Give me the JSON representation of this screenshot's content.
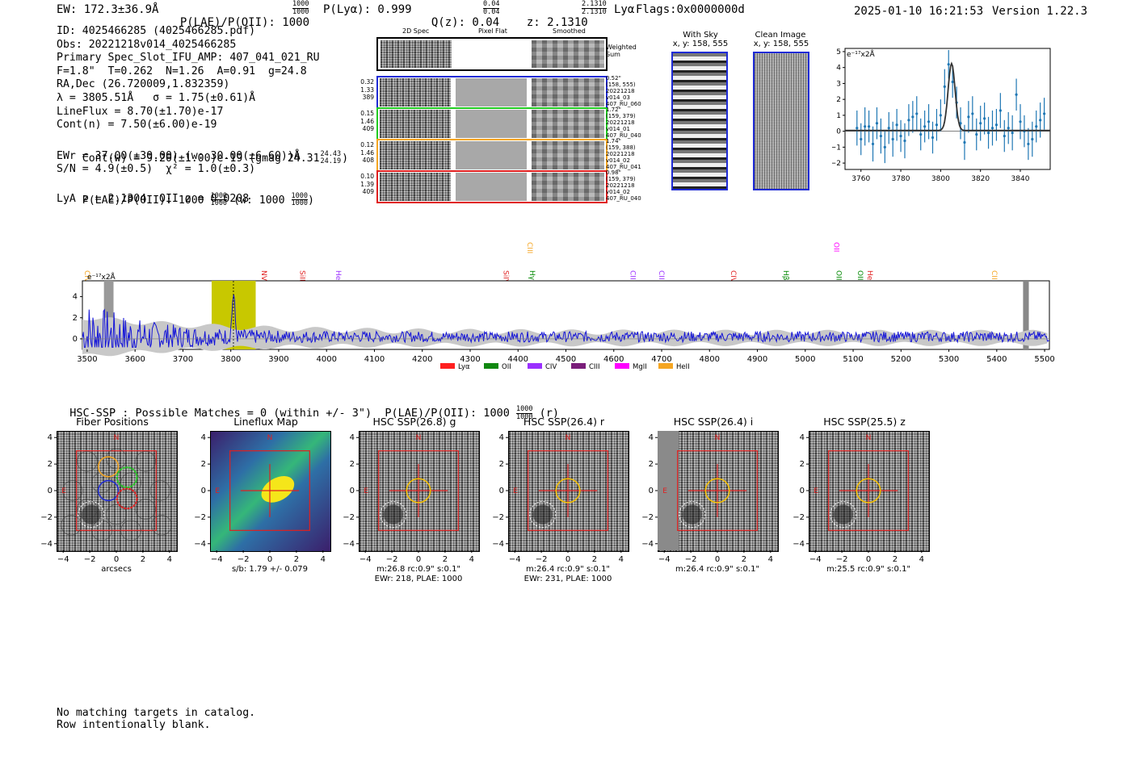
{
  "header": {
    "ew": "EW: 172.3±36.9Å",
    "plae_label": "P(LAE)/P(OII): 1000",
    "plae_sup": "1000",
    "plae_sub": "1000",
    "plya": "P(Lyα): 0.999",
    "qz_label": "Q(z): 0.04",
    "qz_sup": "0.04",
    "qz_sub": "0.04",
    "z_label": "z: 2.1310",
    "z_sup": "2.1310",
    "z_sub": "2.1310",
    "line": "Lyα",
    "flags": "Flags:0x0000000d",
    "datetime": "2025-01-10 16:21:53",
    "version": "Version 1.22.3"
  },
  "info": {
    "lines": [
      "ID: 4025466285 (4025466285.pdf)",
      "Obs: 20221218v014_4025466285",
      "Primary Spec_Slot_IFU_AMP: 407_041_021_RU",
      "F=1.8\"  T=0.262  N=1.26  A=0.91  g=24.8",
      "RA,Dec (26.720009,1.832359)",
      "λ = 3805.51Å   σ = 1.75(±0.61)Å",
      "LineFlux = 8.70(±1.70)e-17",
      "Cont(n) = 7.50(±6.00)e-19"
    ],
    "contw": "Cont(w) = 9.20(±1.00)e-19 (gmag 24.31",
    "contw_sup": "24.43",
    "contw_sub": "24.19",
    "contw_end": ")",
    "ewr": "EWr = 37.00(±30.00) (w: 30.00(±6.60))Å",
    "sn": "S/N = 4.9(±0.5)  χ² = 1.0(±0.3)",
    "plae": "P(LAE)/P(OII): 1000",
    "plae_sup": "1000",
    "plae_sub": "1000",
    "plae_w": "(w: 1000",
    "plae_w_sup": "1000",
    "plae_w_sub": "1000",
    "plae_end": ")",
    "lya_z": "LyA z = 2.1304  OII z = 0.0208"
  },
  "spec2d": {
    "col_titles": [
      "2D Spec",
      "Pixel Flat",
      "Smoothed"
    ],
    "weighted_sum": "Weighted\nSum",
    "rows": [
      {
        "left": [
          "0.32",
          "1.33",
          "389"
        ],
        "right": "0.52\"\n(158, 555)\n20221218\nv014_03\n407_RU_060",
        "color": "#1f2bd6"
      },
      {
        "left": [
          "0.15",
          "1.46",
          "409"
        ],
        "right": "1.72\"\n(159, 379)\n20221218\nv014_01\n407_RU_040",
        "color": "#22cc22"
      },
      {
        "left": [
          "0.12",
          "1.46",
          "408"
        ],
        "right": "1.74\"\n(159, 388)\n20221218\nv014_02\n407_RU_041",
        "color": "#f5a623"
      },
      {
        "left": [
          "0.10",
          "1.39",
          "409"
        ],
        "right": "0.98\"\n(159, 379)\n20221218\nv014_02\n407_RU_040",
        "color": "#e02020"
      }
    ]
  },
  "cutouts_top": {
    "with_sky_title": "With Sky",
    "with_sky_coords": "x, y: 158, 555",
    "clean_title": "Clean Image",
    "clean_coords": "x, y: 158, 555"
  },
  "zoom_chart": {
    "ylabel": "e⁻¹⁷x2Å",
    "xticks": [
      "3760",
      "3780",
      "3800",
      "3820",
      "3840"
    ],
    "yticks": [
      "5",
      "4",
      "3",
      "2",
      "1",
      "0",
      "−1",
      "−2"
    ]
  },
  "chart_data": [
    {
      "type": "scatter",
      "title": "",
      "xlabel": "",
      "ylabel": "e⁻¹⁷x2Å",
      "xlim": [
        3752,
        3855
      ],
      "ylim": [
        -2.4,
        5.2
      ],
      "x": [
        3758,
        3760,
        3762,
        3764,
        3766,
        3768,
        3770,
        3772,
        3774,
        3776,
        3778,
        3780,
        3782,
        3784,
        3786,
        3788,
        3790,
        3792,
        3794,
        3796,
        3798,
        3800,
        3802,
        3804,
        3806,
        3808,
        3810,
        3812,
        3814,
        3816,
        3818,
        3820,
        3822,
        3824,
        3826,
        3828,
        3830,
        3832,
        3834,
        3836,
        3838,
        3840,
        3842,
        3844,
        3846,
        3848,
        3850,
        3852
      ],
      "y": [
        0.2,
        -0.5,
        0.3,
        0.3,
        -0.8,
        0.5,
        -0.3,
        -1.0,
        0.2,
        -0.5,
        0.4,
        -0.3,
        -0.6,
        0.7,
        0.9,
        1.1,
        -0.2,
        0.3,
        0.6,
        -0.4,
        0.4,
        1.0,
        2.8,
        4.2,
        3.1,
        1.8,
        0.5,
        -0.7,
        0.9,
        1.1,
        -0.2,
        0.5,
        0.8,
        -0.1,
        0.2,
        0.4,
        1.3,
        -0.3,
        0.2,
        -0.1,
        2.3,
        0.6,
        0.0,
        -0.8,
        -0.5,
        0.3,
        0.7,
        1.1
      ],
      "yerr": [
        1.1,
        1.0,
        1.2,
        1.0,
        1.1,
        1.0,
        1.1,
        1.0,
        1.0,
        1.1,
        1.0,
        1.0,
        1.1,
        1.0,
        1.0,
        1.1,
        1.0,
        1.0,
        1.1,
        1.0,
        1.0,
        1.0,
        1.1,
        0.9,
        1.0,
        1.0,
        1.0,
        1.1,
        1.0,
        1.1,
        1.0,
        1.1,
        1.0,
        1.0,
        1.1,
        1.0,
        1.1,
        1.0,
        1.0,
        1.1,
        1.0,
        1.1,
        1.0,
        1.0,
        1.1,
        1.0,
        1.1,
        1.0
      ],
      "model": "gaussian peak ~4.2 at 3805.5, sigma 1.75"
    },
    {
      "type": "line",
      "title": "",
      "xlabel": "",
      "ylabel": "e⁻¹⁷x2Å",
      "xlim": [
        3490,
        5510
      ],
      "ylim": [
        -1,
        5.5
      ],
      "xticks": [
        3500,
        3600,
        3700,
        3800,
        3900,
        4000,
        4100,
        4200,
        4300,
        4400,
        4500,
        4600,
        4700,
        4800,
        4900,
        5000,
        5100,
        5200,
        5300,
        5400,
        5500
      ],
      "yticks": [
        0,
        2,
        4
      ],
      "highlight_band": [
        3760,
        3852
      ],
      "line_marker": 3805.5,
      "lines": [
        {
          "label": "CIV",
          "x": 3500,
          "color": "#f5a623"
        },
        {
          "label": "NV",
          "x": 3870,
          "color": "#e02020"
        },
        {
          "label": "SiII",
          "x": 3950,
          "color": "#e02020"
        },
        {
          "label": "HeII",
          "x": 4025,
          "color": "#9b30ff"
        },
        {
          "label": "SiIV",
          "x": 4375,
          "color": "#e02020"
        },
        {
          "label": "CIII",
          "x": 4425,
          "color": "#f5a623"
        },
        {
          "label": "Hγ",
          "x": 4430,
          "color": "#008800"
        },
        {
          "label": "CII",
          "x": 4640,
          "color": "#9b30ff"
        },
        {
          "label": "CIII",
          "x": 4700,
          "color": "#9b30ff"
        },
        {
          "label": "CIV",
          "x": 4850,
          "color": "#e02020"
        },
        {
          "label": "Hβ",
          "x": 4960,
          "color": "#008800"
        },
        {
          "label": "OII",
          "x": 5065,
          "color": "#ff00ff"
        },
        {
          "label": "OIII",
          "x": 5070,
          "color": "#008800"
        },
        {
          "label": "OIII",
          "x": 5115,
          "color": "#008800"
        },
        {
          "label": "HeII",
          "x": 5135,
          "color": "#e02020"
        },
        {
          "label": "CII",
          "x": 5395,
          "color": "#f5a623"
        }
      ],
      "legend": [
        {
          "label": "Lyα",
          "color": "#ff2020"
        },
        {
          "label": "OII",
          "color": "#118811"
        },
        {
          "label": "CIV",
          "color": "#9b30ff"
        },
        {
          "label": "CIII",
          "color": "#7a1e7a"
        },
        {
          "label": "MgII",
          "color": "#ff00ff"
        },
        {
          "label": "HeII",
          "color": "#f5a623"
        }
      ]
    }
  ],
  "hsc": {
    "title": "HSC-SSP : Possible Matches = 0 (within +/- 3\")  P(LAE)/P(OII): 1000",
    "title_sup": "1000",
    "title_sub": "1000",
    "title_end": "(r)",
    "ticks": [
      "4",
      "2",
      "0",
      "−2",
      "−4"
    ],
    "xticks": [
      "−4",
      "−2",
      "0",
      "2",
      "4"
    ],
    "panels": [
      {
        "title": "Fiber Positions",
        "caption1": "arcsecs",
        "caption2": ""
      },
      {
        "title": "Lineflux Map",
        "caption1": "s/b: 1.79 +/- 0.079",
        "caption2": ""
      },
      {
        "title": "HSC SSP(26.8) g",
        "caption1": "m:26.8 rc:0.9\"  s:0.1\"",
        "caption2": "EWr: 218, PLAE: 1000"
      },
      {
        "title": "HSC SSP(26.4) r",
        "caption1": "m:26.4 rc:0.9\"  s:0.1\"",
        "caption2": "EWr: 231, PLAE: 1000"
      },
      {
        "title": "HSC SSP(26.4) i",
        "caption1": "m:26.4 rc:0.9\"  s:0.1\"",
        "caption2": ""
      },
      {
        "title": "HSC SSP(25.5) z",
        "caption1": "m:25.5 rc:0.9\"  s:0.1\"",
        "caption2": ""
      }
    ],
    "n_label": "N",
    "e_label": "E"
  },
  "footer": {
    "line1": "No matching targets in catalog.",
    "line2": "Row intentionally blank."
  }
}
